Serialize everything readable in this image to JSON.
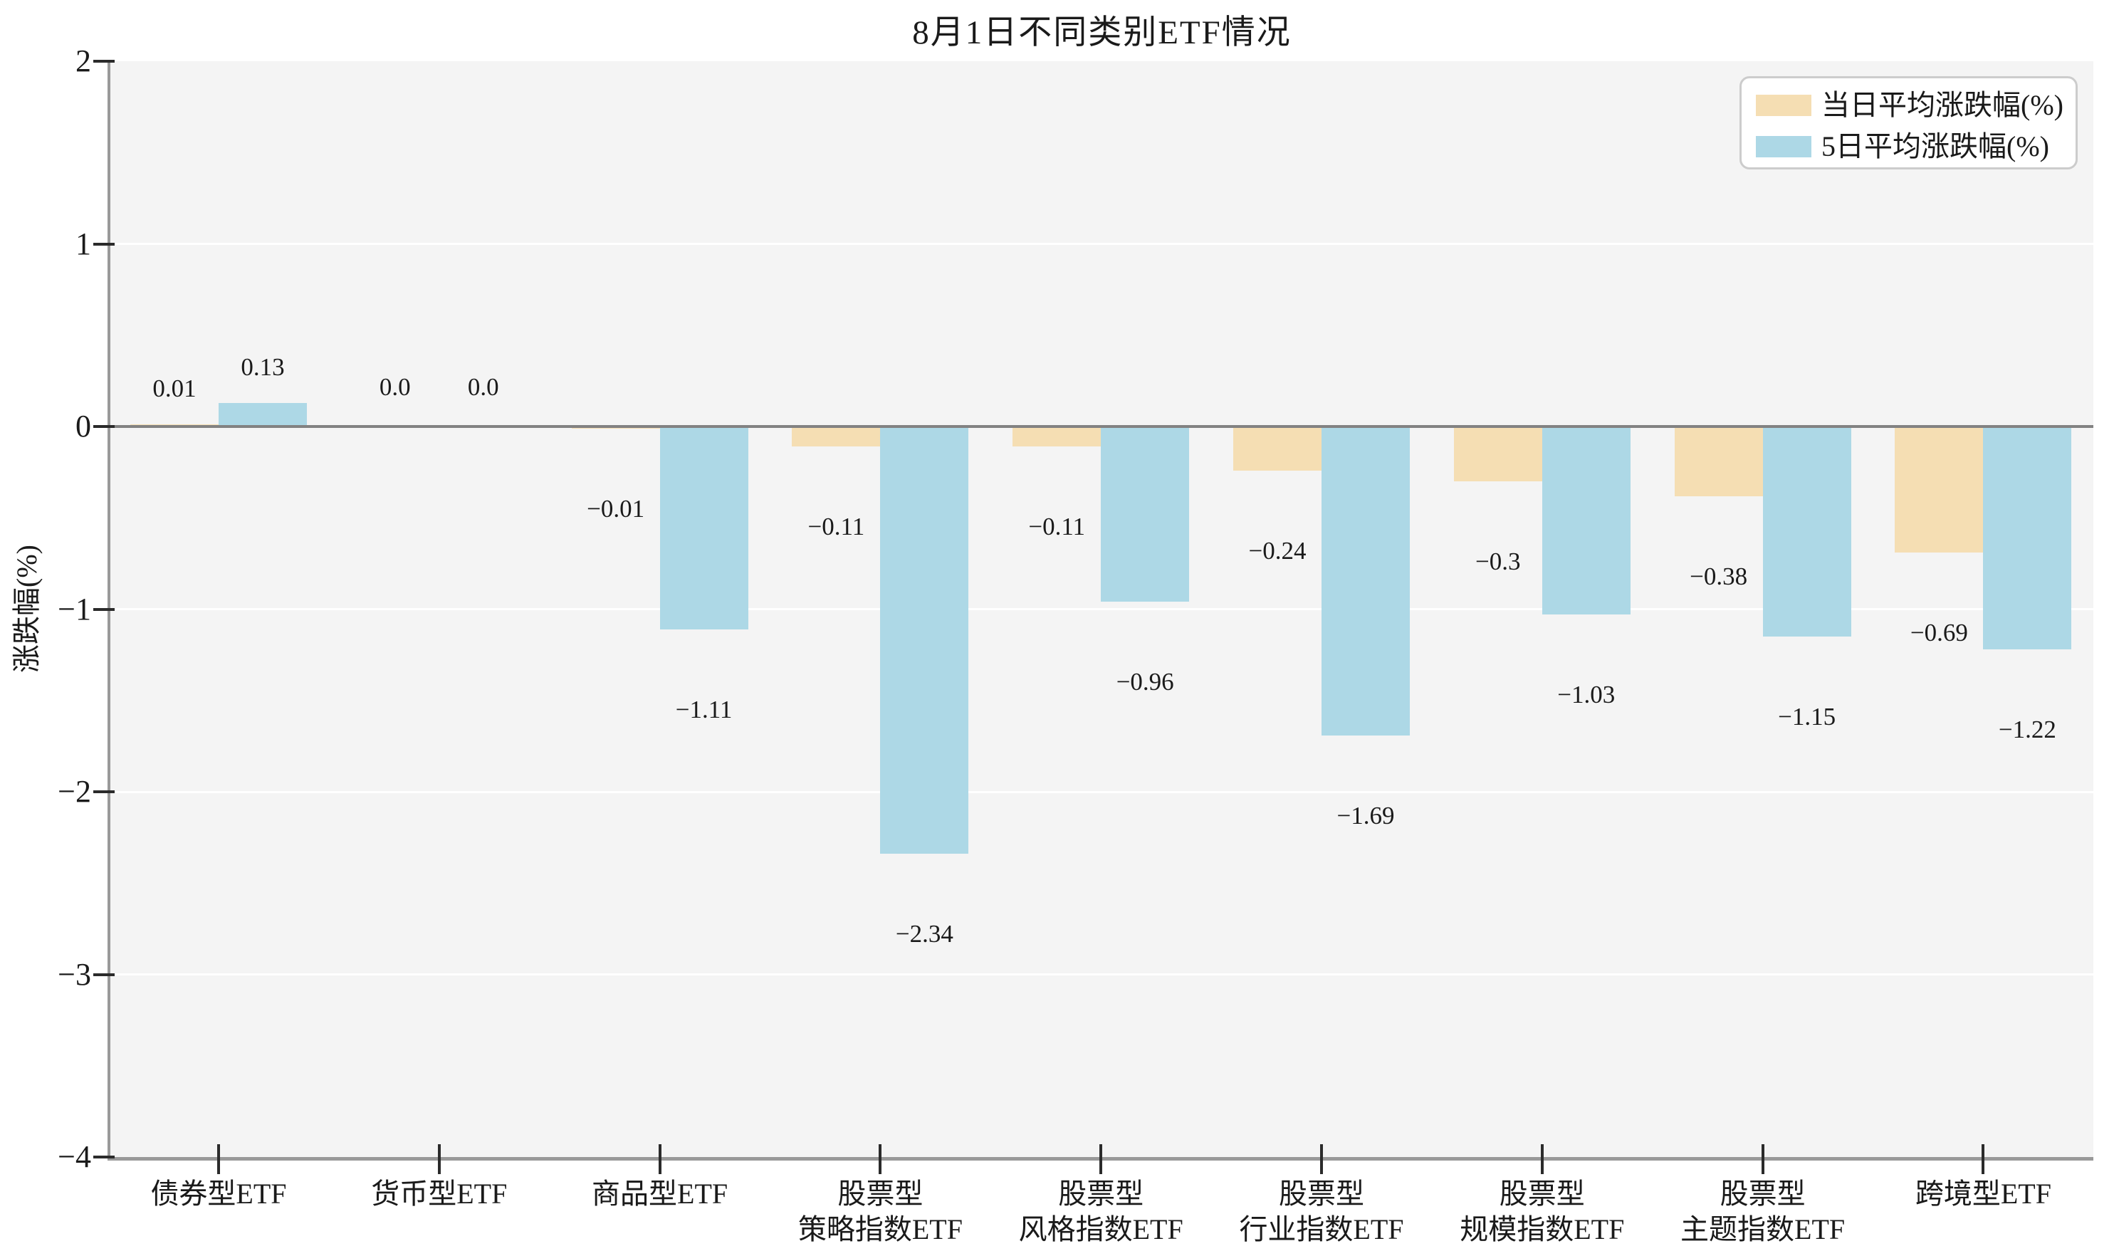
{
  "title": "8月1日不同类别ETF情况",
  "y_axis": {
    "label": "涨跌幅(%)",
    "tick_labels": [
      "2",
      "1",
      "0",
      "−1",
      "−2",
      "−3",
      "−4"
    ],
    "tick_values": [
      2,
      1,
      0,
      -1,
      -2,
      -3,
      -4
    ]
  },
  "legend": {
    "items": [
      {
        "label": "当日平均涨跌幅(%)",
        "color": "#F5DEB3"
      },
      {
        "label": "5日平均涨跌幅(%)",
        "color": "#ADD8E6"
      }
    ]
  },
  "colors": {
    "series_day": "#F5DEB3",
    "series_5day": "#ADD8E6",
    "plot_background": "#f4f4f4",
    "gridline": "#ffffff",
    "zero_line": "#828282",
    "spine": "#999999",
    "text": "#1a1a1a",
    "legend_border": "#cccccc"
  },
  "chart_data": {
    "type": "bar",
    "title": "8月1日不同类别ETF情况",
    "ylabel": "涨跌幅(%)",
    "ylim": [
      -4,
      2
    ],
    "yticks": [
      2,
      1,
      0,
      -1,
      -2,
      -3,
      -4
    ],
    "grid": {
      "horizontal": true,
      "color": "#ffffff"
    },
    "legend_position": "upper right",
    "categories": [
      "债券型ETF",
      "货币型ETF",
      "商品型ETF",
      "股票型\n策略指数ETF",
      "股票型\n风格指数ETF",
      "股票型\n行业指数ETF",
      "股票型\n规模指数ETF",
      "股票型\n主题指数ETF",
      "跨境型ETF"
    ],
    "series": [
      {
        "name": "当日平均涨跌幅(%)",
        "color": "#F5DEB3",
        "values": [
          0.01,
          0.0,
          -0.01,
          -0.11,
          -0.11,
          -0.24,
          -0.3,
          -0.38,
          -0.69
        ],
        "labels": [
          "0.01",
          "0.0",
          "−0.01",
          "−0.11",
          "−0.11",
          "−0.24",
          "−0.3",
          "−0.38",
          "−0.69"
        ]
      },
      {
        "name": "5日平均涨跌幅(%)",
        "color": "#ADD8E6",
        "values": [
          0.13,
          0.0,
          -1.11,
          -2.34,
          -0.96,
          -1.69,
          -1.03,
          -1.15,
          -1.22
        ],
        "labels": [
          "0.13",
          "0.0",
          "−1.11",
          "−2.34",
          "−0.96",
          "−1.69",
          "−1.03",
          "−1.15",
          "−1.22"
        ]
      }
    ]
  }
}
